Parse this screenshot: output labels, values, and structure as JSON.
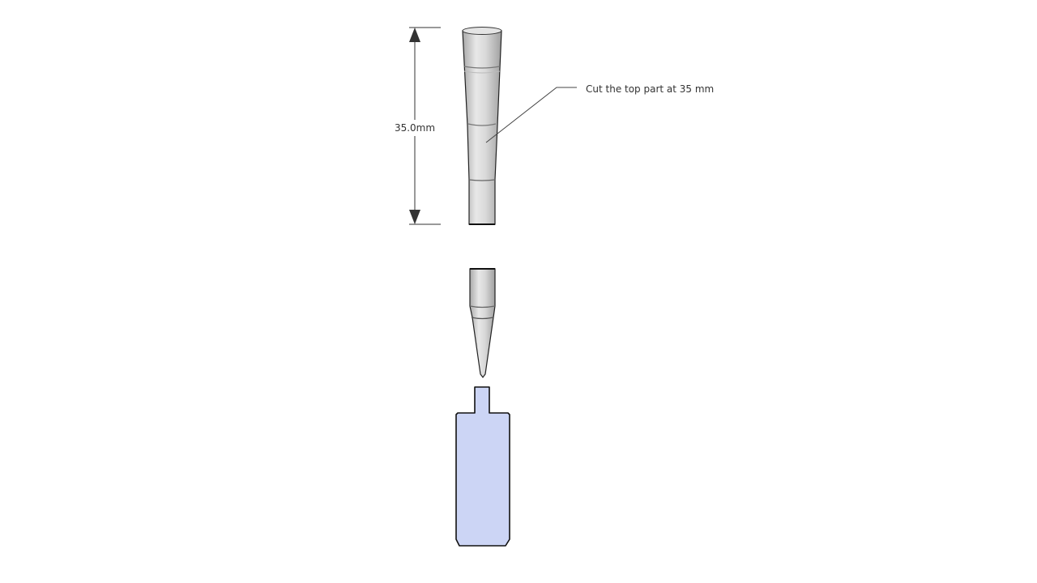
{
  "dimension": {
    "label": "35.0mm"
  },
  "annotation": {
    "text": "Cut the top part at 35 mm"
  },
  "colors": {
    "tip_light": "#e6e6e6",
    "tip_mid": "#c8c8c8",
    "tip_dark": "#a6a6a6",
    "outline": "#000000",
    "holder_fill": "#ccd5f5",
    "dimension_line": "#333333"
  }
}
